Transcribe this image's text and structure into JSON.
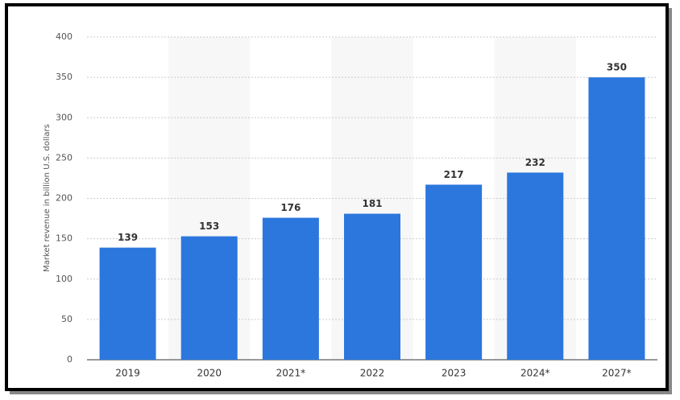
{
  "chart_data": {
    "type": "bar",
    "y_axis_label": "Market revenue in billion U.S. dollars",
    "categories": [
      "2019",
      "2020",
      "2021*",
      "2022",
      "2023",
      "2024*",
      "2027*"
    ],
    "values": [
      139,
      153,
      176,
      181,
      217,
      232,
      350
    ],
    "color": "#2b77dd",
    "ylim": [
      0,
      400
    ],
    "yticks": [
      0,
      50,
      100,
      150,
      200,
      250,
      300,
      350,
      400
    ],
    "grid": true
  }
}
